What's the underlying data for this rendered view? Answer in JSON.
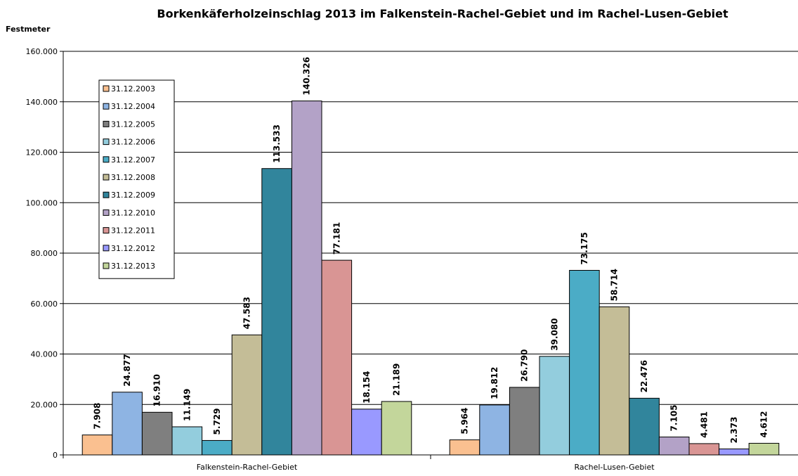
{
  "chart_data": {
    "type": "bar",
    "title": "Borkenkäferholzeinschlag 2013 im Falkenstein-Rachel-Gebiet und im Rachel-Lusen-Gebiet",
    "ylabel": "Festmeter",
    "xlabel": "",
    "ylim": [
      0,
      160000
    ],
    "ytick_values": [
      0,
      20000,
      40000,
      60000,
      80000,
      100000,
      120000,
      140000,
      160000
    ],
    "ytick_labels": [
      "0",
      "20.000",
      "40.000",
      "60.000",
      "80.000",
      "100.000",
      "120.000",
      "140.000",
      "160.000"
    ],
    "grid": true,
    "legend_position": "top-left",
    "categories": [
      "Falkenstein-Rachel-Gebiet",
      "Rachel-Lusen-Gebiet"
    ],
    "series": [
      {
        "name": "31.12.2003",
        "color": "#FAC090",
        "values": [
          7908,
          5964
        ],
        "labels": [
          "7.908",
          "5.964"
        ]
      },
      {
        "name": "31.12.2004",
        "color": "#8EB4E3",
        "values": [
          24877,
          19812
        ],
        "labels": [
          "24.877",
          "19.812"
        ]
      },
      {
        "name": "31.12.2005",
        "color": "#7F7F7F",
        "values": [
          16910,
          26790
        ],
        "labels": [
          "16.910",
          "26.790"
        ]
      },
      {
        "name": "31.12.2006",
        "color": "#93CDDD",
        "values": [
          11149,
          39080
        ],
        "labels": [
          "11.149",
          "39.080"
        ]
      },
      {
        "name": "31.12.2007",
        "color": "#4BACC6",
        "values": [
          5729,
          73175
        ],
        "labels": [
          "5.729",
          "73.175"
        ]
      },
      {
        "name": "31.12.2008",
        "color": "#C4BD97",
        "values": [
          47583,
          58714
        ],
        "labels": [
          "47.583",
          "58.714"
        ]
      },
      {
        "name": "31.12.2009",
        "color": "#31859C",
        "values": [
          113533,
          22476
        ],
        "labels": [
          "113.533",
          "22.476"
        ]
      },
      {
        "name": "31.12.2010",
        "color": "#B3A2C7",
        "values": [
          140326,
          7105
        ],
        "labels": [
          "140.326",
          "7.105"
        ]
      },
      {
        "name": "31.12.2011",
        "color": "#D99594",
        "values": [
          77181,
          4481
        ],
        "labels": [
          "77.181",
          "4.481"
        ]
      },
      {
        "name": "31.12.2012",
        "color": "#9999FF",
        "values": [
          18154,
          2373
        ],
        "labels": [
          "18.154",
          "2.373"
        ]
      },
      {
        "name": "31.12.2013",
        "color": "#C3D69B",
        "values": [
          21189,
          4612
        ],
        "labels": [
          "21.189",
          "4.612"
        ]
      }
    ]
  }
}
